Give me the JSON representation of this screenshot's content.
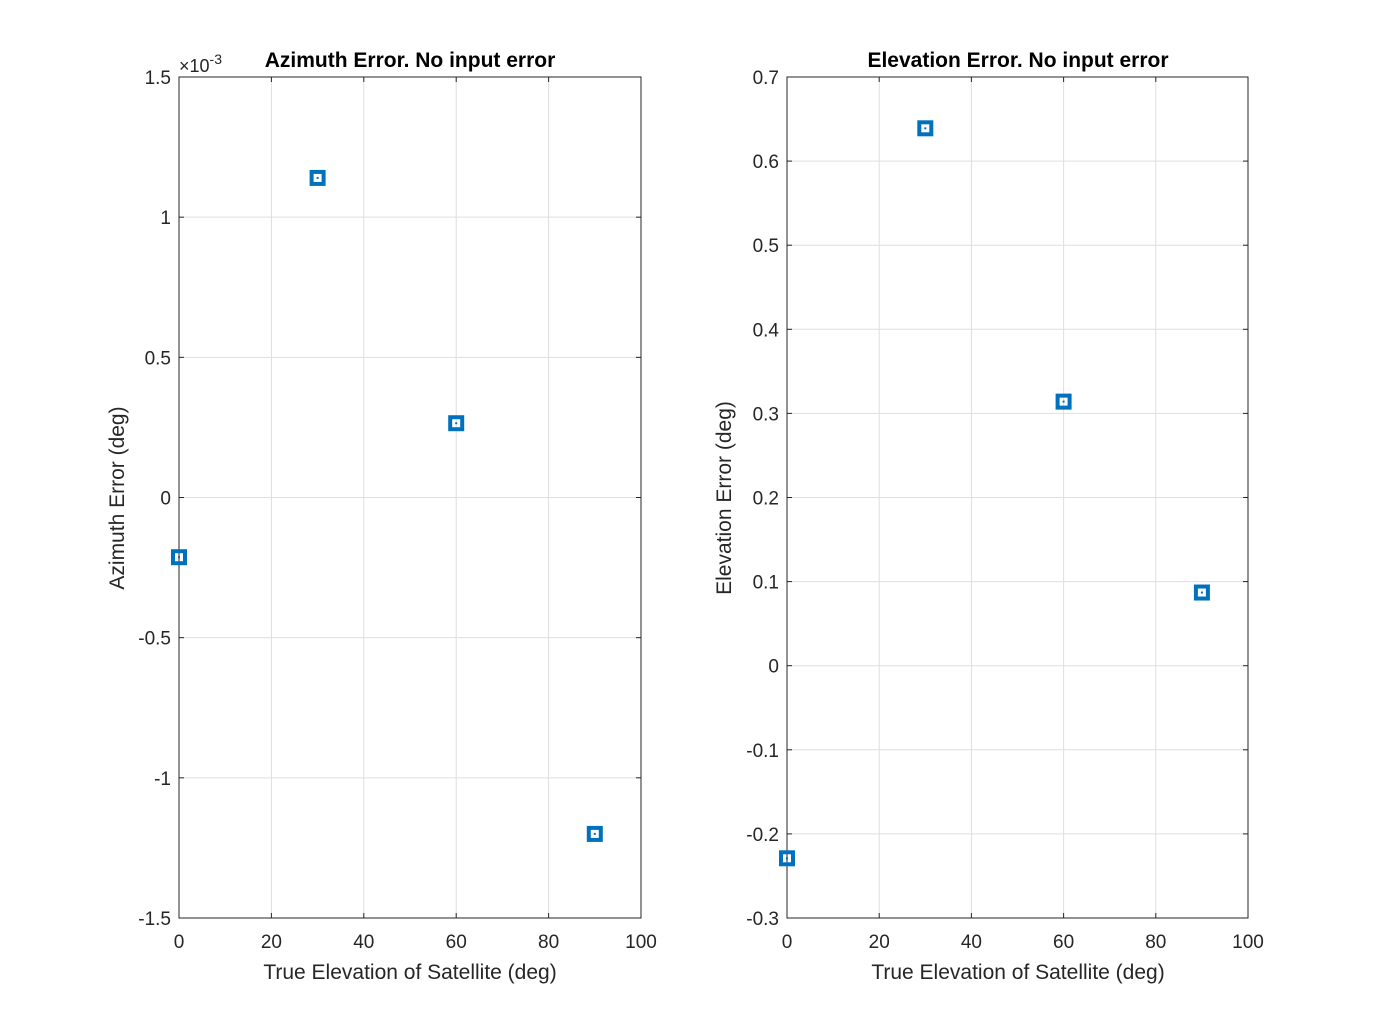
{
  "colors": {
    "marker": "#0072bd",
    "axis": "#262626",
    "grid": "#dfdfdf",
    "title": "#000000"
  },
  "chart_data": [
    {
      "type": "scatter",
      "title": "Azimuth Error. No input error",
      "xlabel": "True Elevation of Satellite (deg)",
      "ylabel": "Azimuth Error (deg)",
      "xlim": [
        0,
        100
      ],
      "ylim": [
        -0.0015,
        0.0015
      ],
      "xticks": [
        0,
        20,
        40,
        60,
        80,
        100
      ],
      "xtick_labels": [
        "0",
        "20",
        "40",
        "60",
        "80",
        "100"
      ],
      "yticks": [
        -0.0015,
        -0.001,
        -0.0005,
        0,
        0.0005,
        0.001,
        0.0015
      ],
      "ytick_labels": [
        "-1.5",
        "-1",
        "-0.5",
        "0",
        "0.5",
        "1",
        "1.5"
      ],
      "exponent_label": "×10",
      "exponent_power": "-3",
      "grid": true,
      "marker": "square",
      "series": [
        {
          "x": [
            0,
            30,
            60,
            90
          ],
          "y": [
            -0.000213,
            0.00114,
            0.000265,
            -0.0012
          ]
        }
      ]
    },
    {
      "type": "scatter",
      "title": "Elevation Error. No input error",
      "xlabel": "True Elevation of Satellite (deg)",
      "ylabel": "Elevation Error (deg)",
      "xlim": [
        0,
        100
      ],
      "ylim": [
        -0.3,
        0.7
      ],
      "xticks": [
        0,
        20,
        40,
        60,
        80,
        100
      ],
      "xtick_labels": [
        "0",
        "20",
        "40",
        "60",
        "80",
        "100"
      ],
      "yticks": [
        -0.3,
        -0.2,
        -0.1,
        0,
        0.1,
        0.2,
        0.3,
        0.4,
        0.5,
        0.6,
        0.7
      ],
      "ytick_labels": [
        "-0.3",
        "-0.2",
        "-0.1",
        "0",
        "0.1",
        "0.2",
        "0.3",
        "0.4",
        "0.5",
        "0.6",
        "0.7"
      ],
      "grid": true,
      "marker": "square",
      "series": [
        {
          "x": [
            0,
            30,
            60,
            90
          ],
          "y": [
            -0.229,
            0.639,
            0.314,
            0.087
          ]
        }
      ]
    }
  ]
}
